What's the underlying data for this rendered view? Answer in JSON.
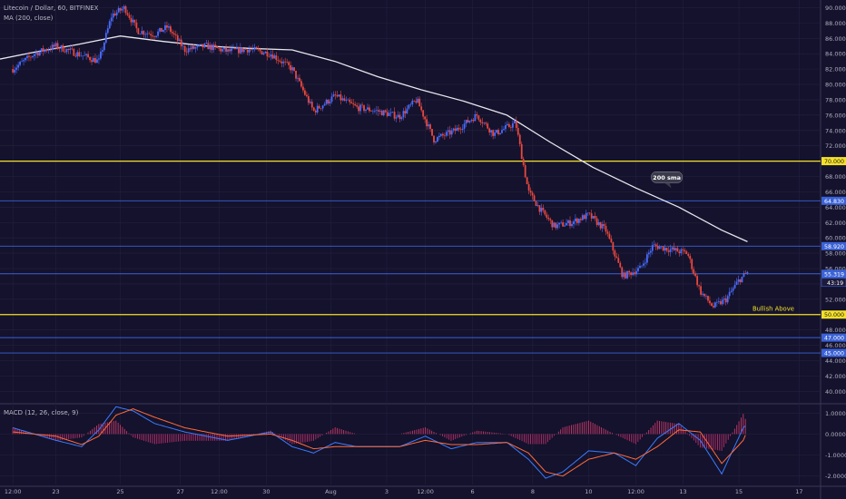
{
  "header": {
    "symbol_line": "Litecoin / Dollar, 60, BITFINEX",
    "ma_label": "MA (200, close)",
    "macd_label": "MACD (12, 26, close, 9)"
  },
  "colors": {
    "background": "#14122c",
    "grid": "#23213e",
    "up": "#4a6cff",
    "down": "#e8483f",
    "ma": "#e6e6ee",
    "yellow_line": "#f5e02a",
    "blue_line": "#3b62d6",
    "macd_line": "#3a7bff",
    "signal_line": "#ff6a3a",
    "hist_pos": "#c93a6a",
    "hist_neg": "#b8306a"
  },
  "chart_data": [
    {
      "type": "candlestick",
      "title": "Litecoin / Dollar, 60, BITFINEX",
      "ylim": [
        38.5,
        91
      ],
      "y_ticks": [
        40,
        42,
        44,
        46,
        48,
        50,
        52,
        54,
        56,
        58,
        60,
        62,
        64,
        66,
        68,
        70,
        72,
        74,
        76,
        78,
        80,
        82,
        84,
        86,
        88,
        90
      ],
      "y_tick_labels": [
        "40.000",
        "42.000",
        "44.000",
        "46.000",
        "48.000",
        "50.000",
        "52.000",
        "54.000",
        "56.000",
        "58.000",
        "60.000",
        "62.000",
        "64.000",
        "66.000",
        "68.000",
        "70.000",
        "72.000",
        "74.000",
        "76.000",
        "78.000",
        "80.000",
        "82.000",
        "84.000",
        "86.000",
        "88.000",
        "90.000"
      ],
      "x_ticks": [
        {
          "day": 0,
          "label": "12:00"
        },
        {
          "day": 1,
          "label": "23"
        },
        {
          "day": 2.5,
          "label": "25"
        },
        {
          "day": 3.9,
          "label": "27"
        },
        {
          "day": 4.8,
          "label": "12:00"
        },
        {
          "day": 5.9,
          "label": "30"
        },
        {
          "day": 7.4,
          "label": "Aug"
        },
        {
          "day": 8.7,
          "label": "3"
        },
        {
          "day": 9.6,
          "label": "12:00"
        },
        {
          "day": 10.7,
          "label": "6"
        },
        {
          "day": 12.1,
          "label": "8"
        },
        {
          "day": 13.4,
          "label": "10"
        },
        {
          "day": 14.5,
          "label": "12:00"
        },
        {
          "day": 15.6,
          "label": "13"
        },
        {
          "day": 16.9,
          "label": "15"
        },
        {
          "day": 18.3,
          "label": "17"
        }
      ],
      "x_range": [
        -0.3,
        18.8
      ],
      "price_path": [
        [
          0,
          82
        ],
        [
          0.5,
          84
        ],
        [
          1,
          85
        ],
        [
          1.5,
          84
        ],
        [
          2,
          83
        ],
        [
          2.3,
          89
        ],
        [
          2.6,
          90
        ],
        [
          2.9,
          87
        ],
        [
          3.3,
          86.5
        ],
        [
          3.6,
          87.5
        ],
        [
          4,
          84.5
        ],
        [
          4.5,
          85
        ],
        [
          5,
          84.3
        ],
        [
          5.5,
          84.6
        ],
        [
          6,
          84
        ],
        [
          6.5,
          82
        ],
        [
          7,
          76.5
        ],
        [
          7.5,
          78.5
        ],
        [
          8,
          77
        ],
        [
          8.5,
          76.5
        ],
        [
          9,
          75.8
        ],
        [
          9.4,
          78
        ],
        [
          9.8,
          72.8
        ],
        [
          10.3,
          74
        ],
        [
          10.8,
          76
        ],
        [
          11.2,
          73.5
        ],
        [
          11.7,
          75
        ],
        [
          12,
          66
        ],
        [
          12.3,
          63.5
        ],
        [
          12.6,
          61.5
        ],
        [
          13,
          62
        ],
        [
          13.4,
          63
        ],
        [
          13.8,
          61
        ],
        [
          14.2,
          55
        ],
        [
          14.6,
          56
        ],
        [
          14.9,
          59
        ],
        [
          15.3,
          58.5
        ],
        [
          15.7,
          58
        ],
        [
          16,
          53
        ],
        [
          16.3,
          51
        ],
        [
          16.6,
          52
        ],
        [
          16.9,
          54.5
        ],
        [
          17.1,
          55.5
        ]
      ],
      "ma_series": {
        "name": "MA (200, close)",
        "x": [
          -0.3,
          0.5,
          1.5,
          2.5,
          3.5,
          4.5,
          5.5,
          6.5,
          7.5,
          8.5,
          9.5,
          10.5,
          11.5,
          12.5,
          13.5,
          14.5,
          15.5,
          16.5,
          17.1
        ],
        "values": [
          83.3,
          84.2,
          85.2,
          86.3,
          85.6,
          85,
          84.7,
          84.5,
          83,
          81,
          79.3,
          77.8,
          76,
          72.5,
          69.2,
          66.5,
          64,
          61,
          59.5
        ]
      },
      "horizontal_levels": [
        {
          "value": 70.0,
          "label": "70.000",
          "color": "#f5e02a"
        },
        {
          "value": 64.83,
          "label": "64.830",
          "color": "#3b62d6"
        },
        {
          "value": 58.92,
          "label": "58.920",
          "color": "#3b62d6"
        },
        {
          "value": 55.319,
          "label": "55.319",
          "color": "#3b62d6"
        },
        {
          "value": 50.0,
          "label": "50.000",
          "color": "#f5e02a"
        },
        {
          "value": 47.0,
          "label": "47.000",
          "color": "#3b62d6"
        },
        {
          "value": 45.0,
          "label": "45.000",
          "color": "#3b62d6"
        }
      ],
      "last_price_label": "55.319",
      "countdown_label": "43:19",
      "annotations": [
        {
          "text": "200 sma",
          "day": 15.2,
          "value": 67.9
        },
        {
          "text": "Bullish Above",
          "day": 17.7,
          "value": 50.5
        }
      ]
    },
    {
      "type": "line",
      "title": "MACD (12, 26, close, 9)",
      "ylim": [
        -2.4,
        1.4
      ],
      "y_ticks": [
        1.0,
        0.0,
        -1.0,
        -2.0
      ],
      "y_tick_labels": [
        "1.0000",
        "0.0000",
        "-1.0000",
        "-2.0000"
      ],
      "series": [
        {
          "name": "MACD",
          "x": [
            0,
            1,
            1.6,
            2,
            2.4,
            2.8,
            3.3,
            4,
            5,
            6,
            6.5,
            7,
            7.5,
            8,
            9,
            9.6,
            10.2,
            10.8,
            11.5,
            12,
            12.4,
            12.8,
            13.4,
            14,
            14.5,
            15,
            15.5,
            16,
            16.5,
            17,
            17.1
          ],
          "values": [
            0.3,
            -0.3,
            -0.6,
            0.2,
            1.3,
            1.1,
            0.5,
            0.1,
            -0.3,
            0.1,
            -0.6,
            -0.9,
            -0.4,
            -0.6,
            -0.6,
            -0.1,
            -0.7,
            -0.4,
            -0.4,
            -1.2,
            -2.1,
            -1.8,
            -0.8,
            -0.9,
            -1.5,
            -0.2,
            0.5,
            -0.3,
            -1.9,
            0.3,
            0.5
          ]
        },
        {
          "name": "Signal",
          "x": [
            0,
            1,
            1.6,
            2,
            2.4,
            2.8,
            3.3,
            4,
            5,
            6,
            6.5,
            7,
            7.5,
            8,
            9,
            9.6,
            10.2,
            10.8,
            11.5,
            12,
            12.4,
            12.8,
            13.4,
            14,
            14.5,
            15,
            15.5,
            16,
            16.5,
            17,
            17.1
          ],
          "values": [
            0.1,
            -0.1,
            -0.5,
            -0.1,
            0.9,
            1.2,
            0.8,
            0.3,
            -0.1,
            0.0,
            -0.3,
            -0.7,
            -0.6,
            -0.6,
            -0.6,
            -0.3,
            -0.5,
            -0.5,
            -0.4,
            -0.9,
            -1.8,
            -2.0,
            -1.2,
            -0.9,
            -1.2,
            -0.6,
            0.2,
            0.1,
            -1.4,
            -0.3,
            0.2
          ]
        }
      ]
    }
  ]
}
